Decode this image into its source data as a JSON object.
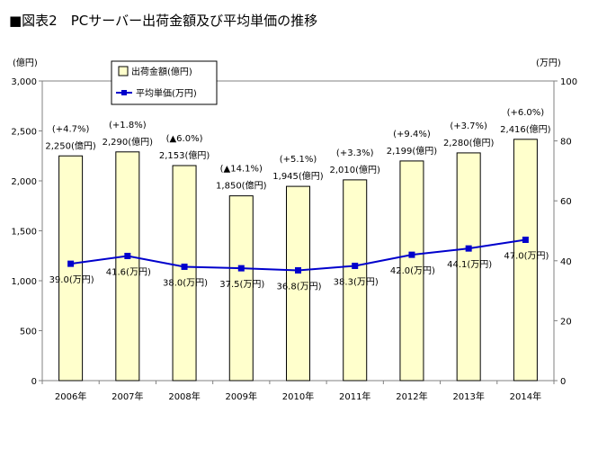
{
  "figure_title": "■図表2　PCサーバー出荷金額及び平均単価の推移",
  "chart_data": {
    "type": "bar+line",
    "categories": [
      "2006年",
      "2007年",
      "2008年",
      "2009年",
      "2010年",
      "2011年",
      "2012年",
      "2013年",
      "2014年"
    ],
    "y_left": {
      "unit": "(億円)",
      "range": [
        0,
        3000
      ],
      "ticks": [
        "0",
        "500",
        "1,000",
        "1,500",
        "2,000",
        "2,500",
        "3,000"
      ],
      "tick_values": [
        0,
        500,
        1000,
        1500,
        2000,
        2500,
        3000
      ]
    },
    "y_right": {
      "unit": "(万円)",
      "range": [
        0,
        100
      ],
      "ticks": [
        "0",
        "20",
        "40",
        "60",
        "80",
        "100"
      ],
      "tick_values": [
        0,
        20,
        40,
        60,
        80,
        100
      ]
    },
    "series": [
      {
        "name": "出荷金額(億円)",
        "type": "bar",
        "axis": "left",
        "color": "#ffffcc",
        "values": [
          2250,
          2290,
          2153,
          1850,
          1945,
          2010,
          2199,
          2280,
          2416
        ],
        "labels": [
          "2,250(億円)",
          "2,290(億円)",
          "2,153(億円)",
          "1,850(億円)",
          "1,945(億円)",
          "2,010(億円)",
          "2,199(億円)",
          "2,280(億円)",
          "2,416(億円)"
        ],
        "growth_labels": [
          "(+4.7%)",
          "(+1.8%)",
          "(▲6.0%)",
          "(▲14.1%)",
          "(+5.1%)",
          "(+3.3%)",
          "(+9.4%)",
          "(+3.7%)",
          "(+6.0%)"
        ]
      },
      {
        "name": "平均単価(万円)",
        "type": "line",
        "axis": "right",
        "color": "#0000cc",
        "values": [
          39.0,
          41.6,
          38.0,
          37.5,
          36.8,
          38.3,
          42.0,
          44.1,
          47.0
        ],
        "labels": [
          "39.0(万円)",
          "41.6(万円)",
          "38.0(万円)",
          "37.5(万円)",
          "36.8(万円)",
          "38.3(万円)",
          "42.0(万円)",
          "44.1(万円)",
          "47.0(万円)"
        ]
      }
    ],
    "legend_position": "top-left"
  }
}
